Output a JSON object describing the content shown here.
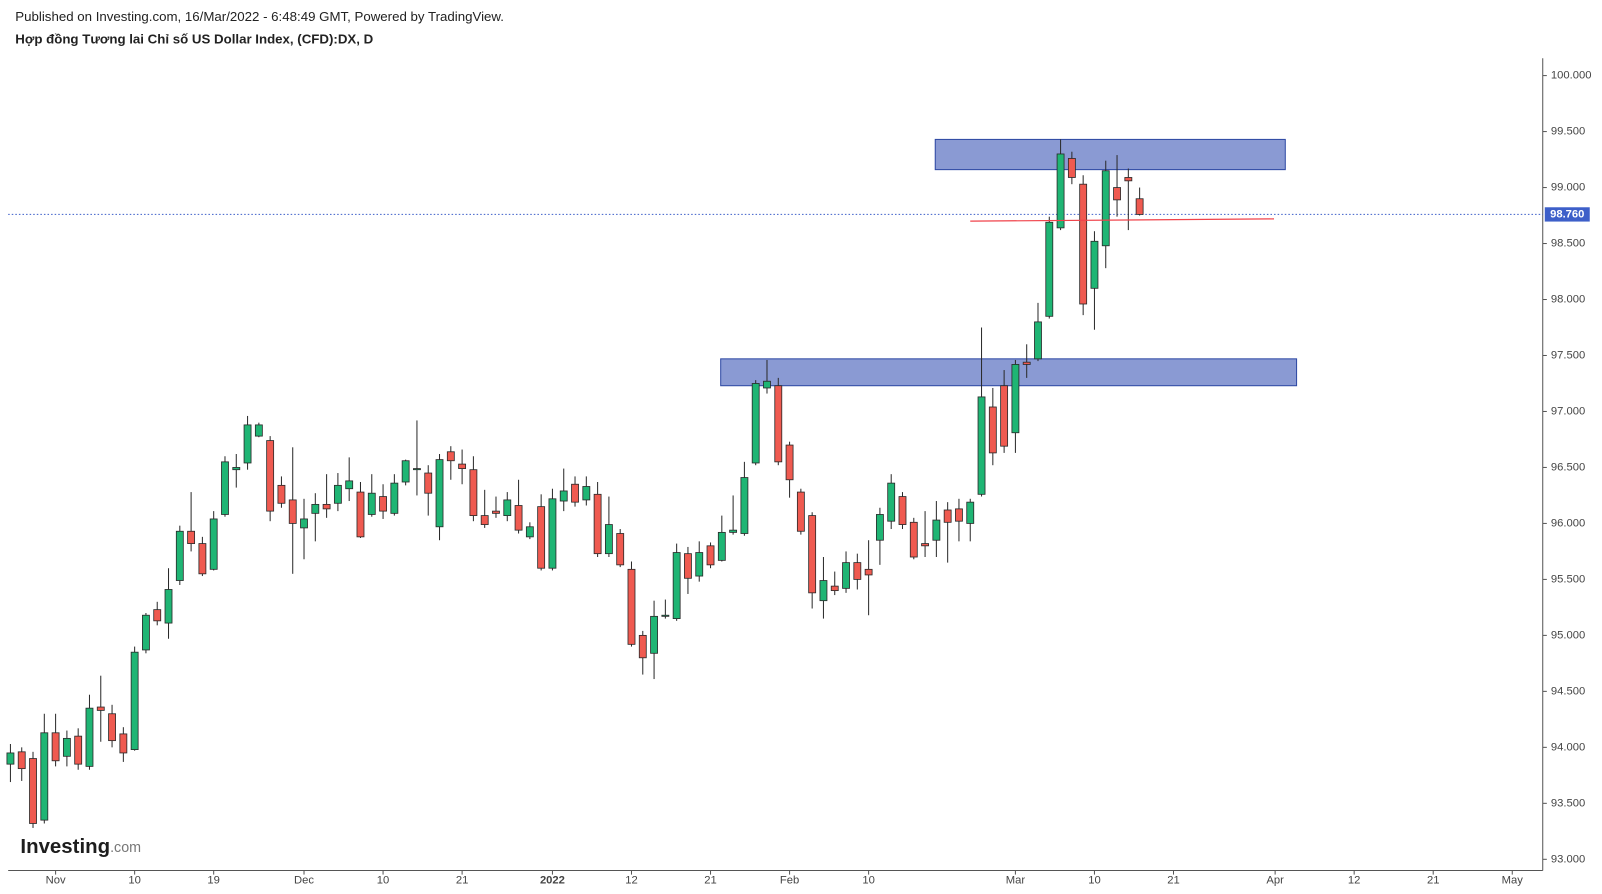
{
  "chart_data": {
    "type": "candlestick",
    "subtitle": "Published on Investing.com, 16/Mar/2022 - 6:48:49 GMT, Powered by TradingView.",
    "title": "Hợp đồng Tương lai Chỉ số US Dollar Index, (CFD):DX, D",
    "watermark": [
      "Investing",
      ".com"
    ],
    "up_color": "#1fb574",
    "down_color": "#ef5a50",
    "ylim": [
      92.9,
      100.155
    ],
    "yticks": [
      {
        "value": 93,
        "label": "93.000"
      },
      {
        "value": 93.5,
        "label": "93.500"
      },
      {
        "value": 94,
        "label": "94.000"
      },
      {
        "value": 94.5,
        "label": "94.500"
      },
      {
        "value": 95,
        "label": "95.000"
      },
      {
        "value": 95.5,
        "label": "95.500"
      },
      {
        "value": 96,
        "label": "96.000"
      },
      {
        "value": 96.5,
        "label": "96.500"
      },
      {
        "value": 97,
        "label": "97.000"
      },
      {
        "value": 97.5,
        "label": "97.500"
      },
      {
        "value": 98,
        "label": "98.000"
      },
      {
        "value": 98.5,
        "label": "98.500"
      },
      {
        "value": 99,
        "label": "99.000"
      },
      {
        "value": 99.5,
        "label": "99.500"
      },
      {
        "value": 100,
        "label": "100.000"
      }
    ],
    "xlim": [
      -0.2,
      135.7
    ],
    "xticks": [
      {
        "value": 4,
        "label": "Nov"
      },
      {
        "value": 11,
        "label": "10"
      },
      {
        "value": 18,
        "label": "19"
      },
      {
        "value": 26,
        "label": "Dec"
      },
      {
        "value": 33,
        "label": "10"
      },
      {
        "value": 40,
        "label": "21"
      },
      {
        "value": 48,
        "label": "2022"
      },
      {
        "value": 55,
        "label": "12"
      },
      {
        "value": 62,
        "label": "21"
      },
      {
        "value": 69,
        "label": "Feb"
      },
      {
        "value": 76,
        "label": "10"
      },
      {
        "value": 89,
        "label": "Mar"
      },
      {
        "value": 96,
        "label": "10"
      },
      {
        "value": 103,
        "label": "21"
      },
      {
        "value": 112,
        "label": "Apr"
      },
      {
        "value": 119,
        "label": "12"
      },
      {
        "value": 126,
        "label": "21"
      },
      {
        "value": 133,
        "label": "May"
      }
    ],
    "open": [
      93.85,
      93.96,
      93.9,
      93.35,
      94.13,
      93.92,
      94.1,
      93.83,
      94.36,
      94.3,
      94.12,
      93.98,
      94.87,
      95.23,
      95.11,
      95.49,
      95.93,
      95.82,
      95.59,
      96.08,
      96.48,
      96.54,
      96.78,
      96.74,
      96.34,
      96.21,
      95.96,
      96.09,
      96.17,
      96.18,
      96.31,
      96.28,
      96.08,
      96.24,
      96.09,
      96.37,
      96.48,
      96.45,
      95.97,
      96.64,
      96.53,
      96.48,
      96.07,
      96.11,
      96.07,
      96.16,
      95.88,
      96.15,
      95.6,
      96.2,
      96.35,
      96.21,
      96.26,
      95.73,
      95.91,
      95.59,
      95.0,
      94.84,
      95.17,
      95.15,
      95.73,
      95.53,
      95.8,
      95.67,
      95.92,
      95.91,
      96.54,
      97.21,
      97.23,
      96.7,
      96.28,
      96.07,
      95.31,
      95.44,
      95.42,
      95.65,
      95.59,
      95.85,
      96.02,
      96.24,
      96.01,
      95.82,
      95.85,
      96.12,
      96.13,
      96.0,
      96.26,
      97.04,
      97.23,
      96.81,
      97.44,
      97.47,
      97.85,
      98.64,
      99.26,
      99.03,
      98.1,
      98.48,
      99.0,
      99.09,
      98.9
    ],
    "high": [
      94.03,
      94.0,
      93.96,
      94.3,
      94.3,
      94.15,
      94.17,
      94.47,
      94.64,
      94.38,
      94.18,
      94.9,
      95.2,
      95.3,
      95.6,
      95.98,
      96.28,
      95.88,
      96.11,
      96.6,
      96.62,
      96.96,
      96.9,
      96.78,
      96.42,
      96.68,
      96.22,
      96.27,
      96.44,
      96.45,
      96.59,
      96.37,
      96.44,
      96.35,
      96.44,
      96.57,
      96.92,
      96.52,
      96.62,
      96.69,
      96.66,
      96.6,
      96.3,
      96.24,
      96.28,
      96.39,
      96.01,
      96.26,
      96.31,
      96.49,
      96.42,
      96.42,
      96.37,
      96.24,
      95.95,
      95.66,
      95.04,
      95.31,
      95.32,
      95.82,
      95.79,
      95.84,
      95.83,
      96.07,
      96.25,
      96.55,
      97.28,
      97.46,
      97.3,
      96.73,
      96.31,
      96.1,
      95.7,
      95.57,
      95.75,
      95.73,
      95.85,
      96.14,
      96.44,
      96.28,
      96.05,
      96.11,
      96.2,
      96.19,
      96.22,
      96.22,
      97.75,
      97.21,
      97.37,
      97.46,
      97.6,
      97.97,
      98.74,
      99.43,
      99.32,
      99.11,
      98.61,
      99.24,
      99.29,
      99.17,
      99.0
    ],
    "low": [
      93.69,
      93.7,
      93.28,
      93.32,
      93.83,
      93.83,
      93.8,
      93.8,
      94.05,
      94.0,
      93.87,
      93.97,
      94.84,
      95.09,
      94.97,
      95.45,
      95.75,
      95.53,
      95.58,
      96.06,
      96.32,
      96.48,
      96.77,
      96.02,
      96.14,
      95.55,
      95.68,
      95.84,
      96.05,
      96.11,
      96.2,
      95.87,
      96.06,
      96.04,
      96.07,
      96.34,
      96.25,
      96.07,
      95.85,
      96.39,
      96.35,
      96.02,
      95.96,
      96.05,
      96.02,
      95.91,
      95.86,
      95.58,
      95.58,
      96.11,
      96.15,
      96.16,
      95.7,
      95.7,
      95.61,
      94.9,
      94.65,
      94.61,
      95.15,
      95.13,
      95.37,
      95.48,
      95.6,
      95.66,
      95.9,
      95.89,
      96.52,
      97.16,
      96.52,
      96.23,
      95.9,
      95.24,
      95.15,
      95.36,
      95.38,
      95.41,
      95.18,
      95.63,
      95.95,
      95.95,
      95.68,
      95.7,
      95.7,
      95.65,
      95.84,
      95.84,
      96.24,
      96.52,
      96.63,
      96.63,
      97.3,
      97.45,
      97.83,
      98.62,
      99.03,
      97.86,
      97.73,
      98.28,
      98.74,
      98.62,
      98.75
    ],
    "close": [
      93.95,
      93.81,
      93.32,
      94.13,
      93.88,
      94.08,
      93.85,
      94.35,
      94.33,
      94.06,
      93.95,
      94.85,
      95.18,
      95.13,
      95.41,
      95.93,
      95.82,
      95.55,
      96.04,
      96.55,
      96.5,
      96.88,
      96.88,
      96.11,
      96.18,
      96.0,
      96.04,
      96.17,
      96.13,
      96.34,
      96.38,
      95.88,
      96.27,
      96.11,
      96.36,
      96.56,
      96.49,
      96.27,
      96.57,
      96.56,
      96.49,
      96.07,
      95.99,
      96.09,
      96.21,
      95.94,
      95.97,
      95.6,
      96.22,
      96.29,
      96.19,
      96.33,
      95.73,
      95.99,
      95.63,
      94.92,
      94.8,
      95.17,
      95.18,
      95.74,
      95.51,
      95.74,
      95.63,
      95.92,
      95.94,
      96.41,
      97.25,
      97.27,
      96.55,
      96.39,
      95.93,
      95.38,
      95.49,
      95.4,
      95.65,
      95.5,
      95.54,
      96.08,
      96.36,
      95.99,
      95.7,
      95.8,
      96.03,
      96.01,
      96.02,
      96.19,
      97.13,
      96.63,
      96.69,
      97.42,
      97.42,
      97.8,
      98.69,
      99.3,
      99.09,
      97.96,
      98.52,
      99.15,
      98.89,
      99.06,
      98.76
    ],
    "last_price": {
      "value": 98.76,
      "label": "98.760"
    },
    "last_price_color": "#3d5fc9",
    "zones": [
      {
        "x": [
          81.9,
          112.9
        ],
        "y": [
          99.16,
          99.43
        ],
        "color": "#8a9ad3",
        "border": "#2d48a3"
      },
      {
        "x": [
          62.9,
          113.9
        ],
        "y": [
          97.23,
          97.47
        ],
        "color": "#8a9ad3",
        "border": "#2d48a3"
      }
    ],
    "lines": [
      {
        "x": [
          85,
          111.9
        ],
        "y": [
          98.7,
          98.72
        ],
        "color": "#f0424a"
      }
    ]
  }
}
